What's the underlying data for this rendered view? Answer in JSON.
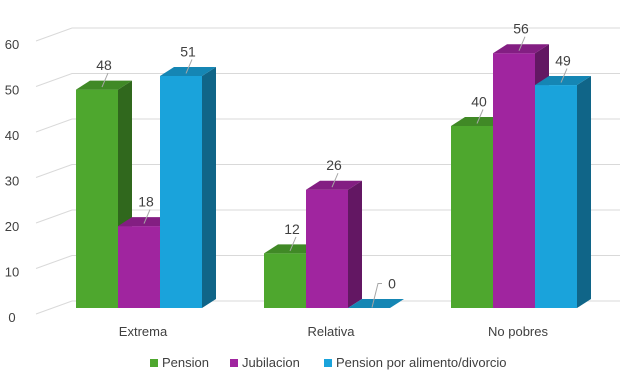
{
  "chart_data": {
    "type": "bar",
    "style": "3d-clustered-column",
    "categories": [
      "Extrema",
      "Relativa",
      "No pobres"
    ],
    "series": [
      {
        "name": "Pension",
        "values": [
          48,
          12,
          40
        ],
        "color": "#4ea72e"
      },
      {
        "name": "Jubilacion",
        "values": [
          18,
          26,
          56
        ],
        "color": "#a0259f"
      },
      {
        "name": "Pension por alimento/divorcio",
        "values": [
          51,
          0,
          49
        ],
        "color": "#1aa3db"
      }
    ],
    "yticks": [
      0,
      10,
      20,
      30,
      40,
      50,
      60
    ],
    "ylim": [
      0,
      60
    ],
    "grid": true,
    "legend_position": "bottom",
    "data_labels": true
  }
}
